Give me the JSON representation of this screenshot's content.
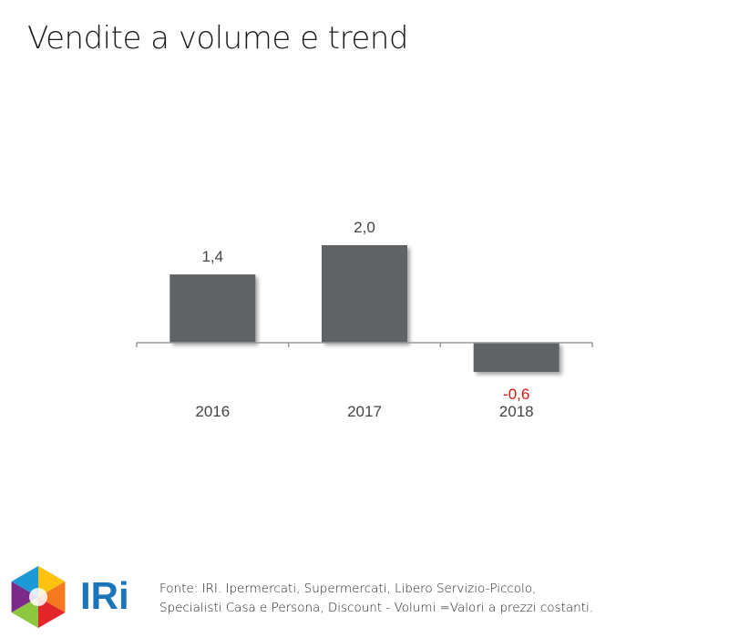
{
  "title": "Vendite a volume e trend",
  "chart_data": {
    "type": "bar",
    "categories": [
      "2016",
      "2017",
      "2018"
    ],
    "values": [
      1.4,
      2.0,
      -0.6
    ],
    "value_labels": [
      "1,4",
      "2,0",
      "-0,6"
    ],
    "xlabel": "",
    "ylabel": "",
    "ylim": [
      -0.6,
      2.0
    ],
    "grid": false,
    "bar_color": "#616365",
    "negative_label_color": "#e0120f",
    "label_color": "#444444"
  },
  "footer": {
    "logo_text": "IRi",
    "logo_colors": [
      "#1d9ad6",
      "#8dc63f",
      "#ffc20e",
      "#e3262a",
      "#f47920",
      "#7b2a8a"
    ],
    "logo_text_color": "#1b75bb",
    "source_line1": "Fonte: IRI. Ipermercati, Supermercati, Libero Servizio-Piccolo,",
    "source_line2": "Specialisti Casa e Persona, Discount -  Volumi =Valori a prezzi costanti."
  }
}
